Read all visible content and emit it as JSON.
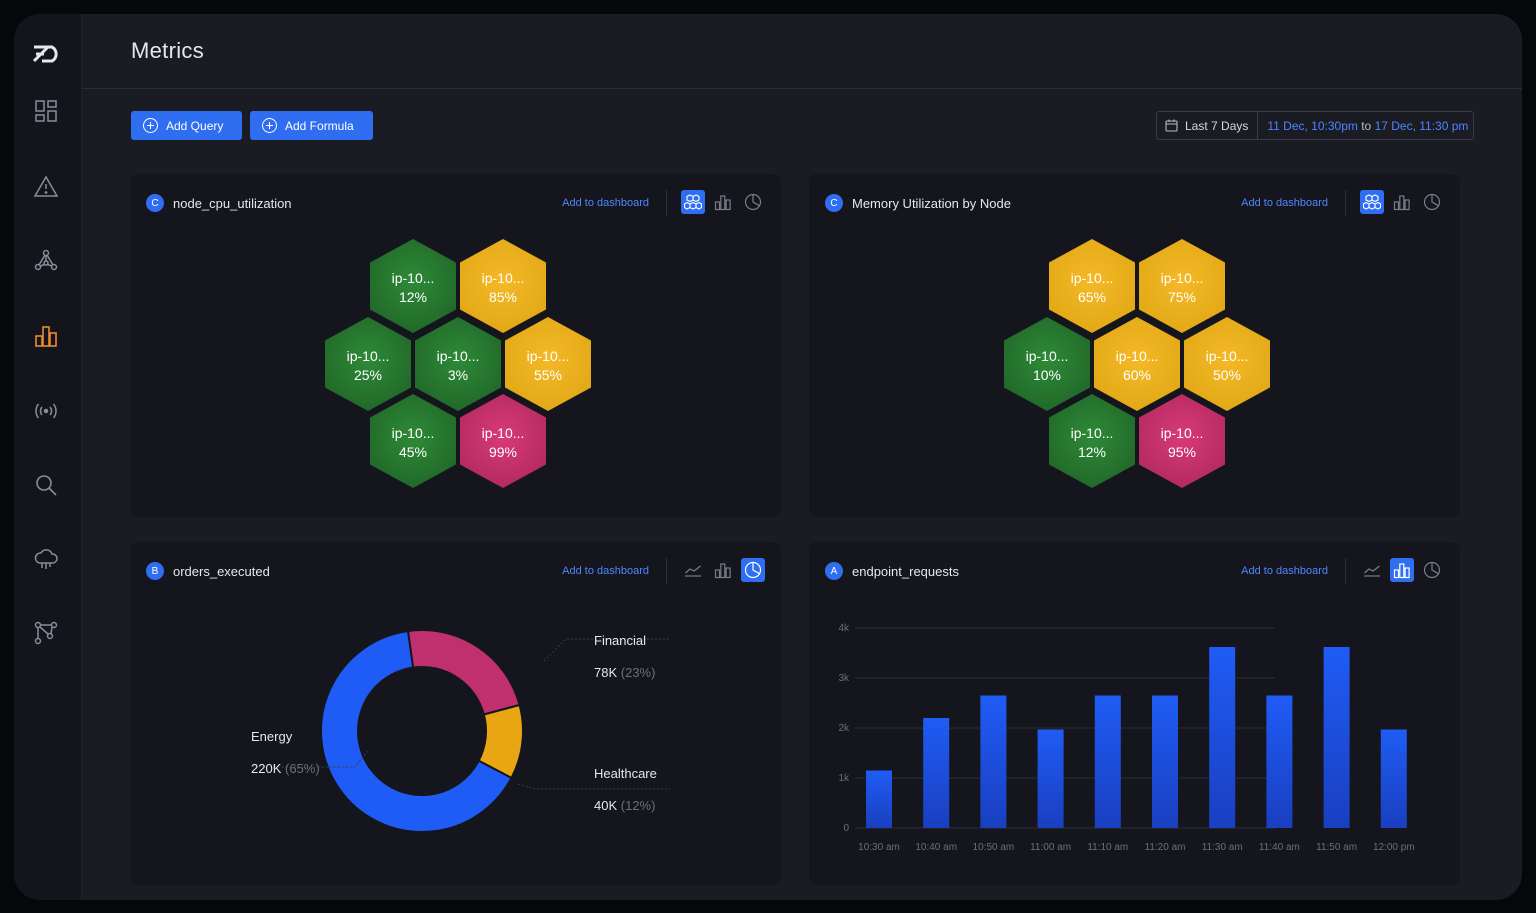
{
  "page": {
    "title": "Metrics"
  },
  "toolbar": {
    "add_query": "Add Query",
    "add_formula": "Add Formula",
    "date_preset": "Last 7 Days",
    "date_from": "11 Dec, 10:30pm",
    "date_to_word": "to",
    "date_to": "17 Dec, 11:30 pm"
  },
  "sidebar": {
    "items": [
      "dashboards-icon",
      "alerts-icon",
      "topology-icon",
      "metrics-icon",
      "signals-icon",
      "search-icon",
      "cloud-icon",
      "pipelines-icon"
    ],
    "active": "metrics-icon",
    "accent": "#e88a2f"
  },
  "panels": [
    {
      "badge": "C",
      "title": "node_cpu_utilization",
      "add_label": "Add to dashboard",
      "view": "honeycomb",
      "hexes": [
        {
          "name": "ip-10...",
          "value": "12%",
          "status": "green"
        },
        {
          "name": "ip-10...",
          "value": "85%",
          "status": "yellow"
        },
        {
          "name": "ip-10...",
          "value": "25%",
          "status": "green"
        },
        {
          "name": "ip-10...",
          "value": "3%",
          "status": "green"
        },
        {
          "name": "ip-10...",
          "value": "55%",
          "status": "yellow"
        },
        {
          "name": "ip-10...",
          "value": "45%",
          "status": "green"
        },
        {
          "name": "ip-10...",
          "value": "99%",
          "status": "pink"
        }
      ]
    },
    {
      "badge": "C",
      "title": "Memory Utilization by Node",
      "add_label": "Add to dashboard",
      "view": "honeycomb",
      "hexes": [
        {
          "name": "ip-10...",
          "value": "65%",
          "status": "yellow"
        },
        {
          "name": "ip-10...",
          "value": "75%",
          "status": "yellow"
        },
        {
          "name": "ip-10...",
          "value": "10%",
          "status": "green"
        },
        {
          "name": "ip-10...",
          "value": "60%",
          "status": "yellow"
        },
        {
          "name": "ip-10...",
          "value": "50%",
          "status": "yellow"
        },
        {
          "name": "ip-10...",
          "value": "12%",
          "status": "green"
        },
        {
          "name": "ip-10...",
          "value": "95%",
          "status": "pink"
        }
      ]
    },
    {
      "badge": "B",
      "title": "orders_executed",
      "add_label": "Add to dashboard",
      "view": "pie"
    },
    {
      "badge": "A",
      "title": "endpoint_requests",
      "add_label": "Add to dashboard",
      "view": "bar"
    }
  ],
  "colors": {
    "accent": "#2f6ef0",
    "green": "#2e8a37",
    "yellow": "#f5b927",
    "pink": "#d83a78"
  },
  "chart_data": [
    {
      "type": "pie",
      "style": "donut",
      "slices": [
        {
          "label": "Energy",
          "value": 220,
          "display": "220K",
          "pct": "(65%)",
          "color": "#1f5cf5"
        },
        {
          "label": "Financial",
          "value": 78,
          "display": "78K",
          "pct": "(23%)",
          "color": "#c0306f"
        },
        {
          "label": "Healthcare",
          "value": 40,
          "display": "40K",
          "pct": "(12%)",
          "color": "#e8a612"
        }
      ]
    },
    {
      "type": "bar",
      "categories": [
        "10:30 am",
        "10:40 am",
        "10:50 am",
        "11:00 am",
        "11:10 am",
        "11:20 am",
        "11:30 am",
        "11:40 am",
        "11:50 am",
        "12:00 pm"
      ],
      "values": [
        1150,
        2200,
        2650,
        1970,
        2650,
        2650,
        3620,
        2650,
        3620,
        1970
      ],
      "y_ticks": [
        "0",
        "1k",
        "2k",
        "3k",
        "4k"
      ],
      "ylim": [
        0,
        4000
      ],
      "grid": true,
      "color": "#1f5cf5"
    }
  ]
}
